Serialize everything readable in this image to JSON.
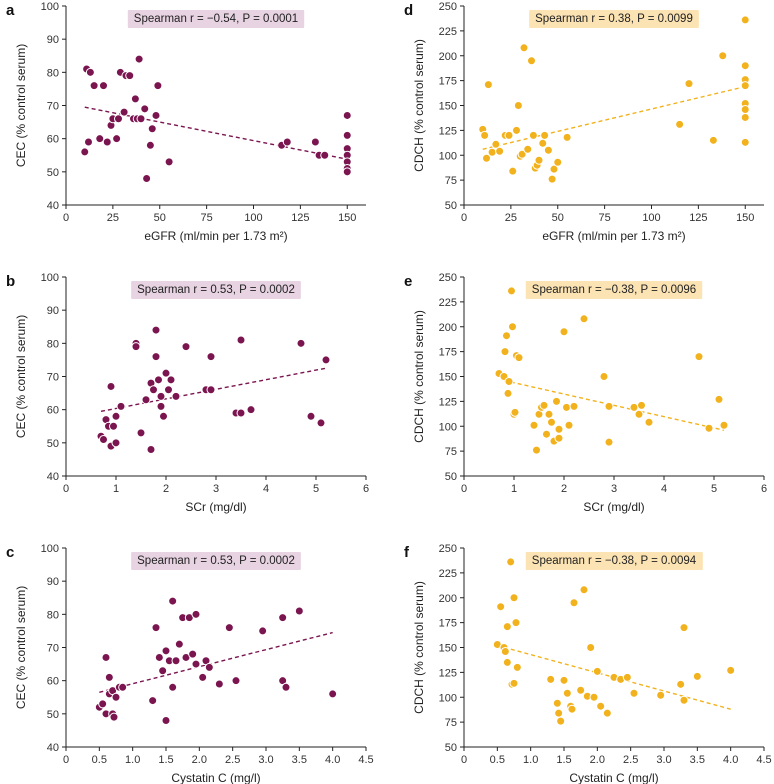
{
  "colors": {
    "purple": "#7b1550",
    "purple_box": "#e8d3e3",
    "orange": "#f2b21d",
    "orange_box": "#fbe3b3"
  },
  "chart_data": [
    {
      "type": "scatter",
      "panel_label": "a",
      "color": "purple",
      "stats_label": "Spearman r = −0.54, P = 0.0001",
      "xlabel": "eGFR (ml/min per 1.73 m²)",
      "ylabel": "CEC (% control serum)",
      "xlim": [
        0,
        160
      ],
      "ylim": [
        40,
        100
      ],
      "xticks": [
        0,
        25,
        50,
        75,
        100,
        125,
        150
      ],
      "yticks": [
        40,
        50,
        60,
        70,
        80,
        90,
        100
      ],
      "trend": [
        [
          10,
          69.5
        ],
        [
          150,
          53.8
        ]
      ],
      "points": [
        [
          10,
          56
        ],
        [
          11,
          81
        ],
        [
          12,
          59
        ],
        [
          13,
          80
        ],
        [
          15,
          76
        ],
        [
          18,
          60
        ],
        [
          20,
          76
        ],
        [
          22,
          59
        ],
        [
          24,
          64
        ],
        [
          25,
          66
        ],
        [
          27,
          60
        ],
        [
          28,
          66
        ],
        [
          29,
          80
        ],
        [
          31,
          68
        ],
        [
          32,
          79
        ],
        [
          34,
          79
        ],
        [
          36,
          66
        ],
        [
          37,
          72
        ],
        [
          38,
          66
        ],
        [
          39,
          84
        ],
        [
          40,
          66
        ],
        [
          42,
          69
        ],
        [
          43,
          48
        ],
        [
          45,
          58
        ],
        [
          46,
          63
        ],
        [
          48,
          67
        ],
        [
          49,
          76
        ],
        [
          55,
          53
        ],
        [
          115,
          58
        ],
        [
          118,
          59
        ],
        [
          133,
          59
        ],
        [
          135,
          55
        ],
        [
          138,
          55
        ],
        [
          150,
          67
        ],
        [
          150,
          61
        ],
        [
          150,
          57
        ],
        [
          150,
          55
        ],
        [
          150,
          53
        ],
        [
          150,
          51
        ],
        [
          150,
          50
        ]
      ]
    },
    {
      "type": "scatter",
      "panel_label": "b",
      "color": "purple",
      "stats_label": "Spearman r = 0.53, P = 0.0002",
      "xlabel": "SCr (mg/dl)",
      "ylabel": "CEC (% control serum)",
      "xlim": [
        0,
        6
      ],
      "ylim": [
        40,
        100
      ],
      "xticks": [
        0,
        1,
        2,
        3,
        4,
        5,
        6
      ],
      "yticks": [
        40,
        50,
        60,
        70,
        80,
        90,
        100
      ],
      "trend": [
        [
          0.7,
          59.5
        ],
        [
          5.2,
          72.5
        ]
      ],
      "points": [
        [
          0.7,
          52
        ],
        [
          0.75,
          51
        ],
        [
          0.8,
          57
        ],
        [
          0.85,
          55
        ],
        [
          0.9,
          67
        ],
        [
          0.9,
          49
        ],
        [
          0.95,
          55
        ],
        [
          1.0,
          58
        ],
        [
          1.0,
          50
        ],
        [
          1.1,
          61
        ],
        [
          1.4,
          80
        ],
        [
          1.4,
          79
        ],
        [
          1.5,
          53
        ],
        [
          1.6,
          63
        ],
        [
          1.7,
          68
        ],
        [
          1.7,
          48
        ],
        [
          1.75,
          66
        ],
        [
          1.8,
          84
        ],
        [
          1.8,
          76
        ],
        [
          1.85,
          69
        ],
        [
          1.9,
          64
        ],
        [
          1.9,
          61
        ],
        [
          1.95,
          58
        ],
        [
          2.0,
          71
        ],
        [
          2.05,
          66
        ],
        [
          2.1,
          69
        ],
        [
          2.2,
          64
        ],
        [
          2.4,
          79
        ],
        [
          2.8,
          66
        ],
        [
          2.9,
          76
        ],
        [
          2.9,
          66
        ],
        [
          3.4,
          59
        ],
        [
          3.5,
          81
        ],
        [
          3.5,
          59
        ],
        [
          3.7,
          60
        ],
        [
          4.7,
          80
        ],
        [
          4.9,
          58
        ],
        [
          5.1,
          56
        ],
        [
          5.2,
          75
        ]
      ]
    },
    {
      "type": "scatter",
      "panel_label": "c",
      "color": "purple",
      "stats_label": "Spearman r = 0.53, P = 0.0002",
      "xlabel": "Cystatin C (mg/l)",
      "ylabel": "CEC (% control serum)",
      "xlim": [
        0,
        4.5
      ],
      "ylim": [
        40,
        100
      ],
      "xticks": [
        0,
        0.5,
        1.0,
        1.5,
        2.0,
        2.5,
        3.0,
        3.5,
        4.0,
        4.5
      ],
      "yticks": [
        40,
        50,
        60,
        70,
        80,
        90,
        100
      ],
      "trend": [
        [
          0.5,
          56.5
        ],
        [
          4.0,
          74.5
        ]
      ],
      "points": [
        [
          0.5,
          52
        ],
        [
          0.55,
          53
        ],
        [
          0.6,
          67
        ],
        [
          0.6,
          50
        ],
        [
          0.65,
          56
        ],
        [
          0.65,
          61
        ],
        [
          0.7,
          57
        ],
        [
          0.7,
          50
        ],
        [
          0.72,
          49
        ],
        [
          0.75,
          55
        ],
        [
          0.8,
          58
        ],
        [
          0.85,
          58
        ],
        [
          1.3,
          54
        ],
        [
          1.35,
          76
        ],
        [
          1.4,
          67
        ],
        [
          1.45,
          63
        ],
        [
          1.5,
          48
        ],
        [
          1.5,
          69
        ],
        [
          1.55,
          66
        ],
        [
          1.6,
          84
        ],
        [
          1.6,
          58
        ],
        [
          1.65,
          66
        ],
        [
          1.7,
          71
        ],
        [
          1.75,
          79
        ],
        [
          1.8,
          67
        ],
        [
          1.85,
          79
        ],
        [
          1.9,
          68
        ],
        [
          1.95,
          80
        ],
        [
          1.95,
          65
        ],
        [
          2.05,
          61
        ],
        [
          2.1,
          66
        ],
        [
          2.15,
          64
        ],
        [
          2.3,
          59
        ],
        [
          2.45,
          76
        ],
        [
          2.55,
          60
        ],
        [
          2.95,
          75
        ],
        [
          3.25,
          79
        ],
        [
          3.25,
          60
        ],
        [
          3.3,
          58
        ],
        [
          3.5,
          81
        ],
        [
          4.0,
          56
        ]
      ]
    },
    {
      "type": "scatter",
      "panel_label": "d",
      "color": "orange",
      "stats_label": "Spearman r = 0.38, P = 0.0099",
      "xlabel": "eGFR (ml/min per 1.73 m²)",
      "ylabel": "CDCH (% control serum)",
      "xlim": [
        0,
        160
      ],
      "ylim": [
        50,
        250
      ],
      "xticks": [
        0,
        25,
        50,
        75,
        100,
        125,
        150
      ],
      "yticks": [
        50,
        75,
        100,
        125,
        150,
        175,
        200,
        225,
        250
      ],
      "trend": [
        [
          10,
          106
        ],
        [
          150,
          169
        ]
      ],
      "points": [
        [
          10,
          126
        ],
        [
          11,
          120
        ],
        [
          12,
          97
        ],
        [
          13,
          171
        ],
        [
          15,
          103
        ],
        [
          17,
          111
        ],
        [
          19,
          104
        ],
        [
          22,
          120
        ],
        [
          24,
          120
        ],
        [
          26,
          84
        ],
        [
          28,
          125
        ],
        [
          29,
          150
        ],
        [
          30,
          99
        ],
        [
          31,
          101
        ],
        [
          32,
          208
        ],
        [
          34,
          106
        ],
        [
          36,
          195
        ],
        [
          37,
          120
        ],
        [
          38,
          87
        ],
        [
          39,
          90
        ],
        [
          40,
          95
        ],
        [
          42,
          112
        ],
        [
          43,
          120
        ],
        [
          45,
          105
        ],
        [
          47,
          76
        ],
        [
          48,
          86
        ],
        [
          50,
          93
        ],
        [
          55,
          118
        ],
        [
          115,
          131
        ],
        [
          120,
          172
        ],
        [
          133,
          115
        ],
        [
          138,
          200
        ],
        [
          150,
          236
        ],
        [
          150,
          190
        ],
        [
          150,
          176
        ],
        [
          150,
          170
        ],
        [
          150,
          152
        ],
        [
          150,
          146
        ],
        [
          150,
          138
        ],
        [
          150,
          113
        ]
      ]
    },
    {
      "type": "scatter",
      "panel_label": "e",
      "color": "orange",
      "stats_label": "Spearman r = −0.38, P = 0.0096",
      "xlabel": "SCr (mg/dl)",
      "ylabel": "CDCH (% control serum)",
      "xlim": [
        0,
        6
      ],
      "ylim": [
        50,
        250
      ],
      "xticks": [
        0,
        1,
        2,
        3,
        4,
        5,
        6
      ],
      "yticks": [
        50,
        75,
        100,
        125,
        150,
        175,
        200,
        225,
        250
      ],
      "trend": [
        [
          0.8,
          146
        ],
        [
          5.2,
          96
        ]
      ],
      "points": [
        [
          0.7,
          153
        ],
        [
          0.8,
          150
        ],
        [
          0.82,
          175
        ],
        [
          0.85,
          191
        ],
        [
          0.88,
          133
        ],
        [
          0.9,
          145
        ],
        [
          0.95,
          236
        ],
        [
          0.97,
          200
        ],
        [
          1.0,
          112
        ],
        [
          1.02,
          114
        ],
        [
          1.05,
          171
        ],
        [
          1.1,
          169
        ],
        [
          1.4,
          101
        ],
        [
          1.45,
          76
        ],
        [
          1.5,
          112
        ],
        [
          1.55,
          119
        ],
        [
          1.6,
          121
        ],
        [
          1.65,
          92
        ],
        [
          1.7,
          112
        ],
        [
          1.75,
          104
        ],
        [
          1.8,
          85
        ],
        [
          1.85,
          125
        ],
        [
          1.9,
          97
        ],
        [
          1.9,
          88
        ],
        [
          2.0,
          195
        ],
        [
          2.05,
          119
        ],
        [
          2.1,
          101
        ],
        [
          2.2,
          120
        ],
        [
          2.4,
          208
        ],
        [
          2.8,
          150
        ],
        [
          2.9,
          120
        ],
        [
          2.9,
          84
        ],
        [
          3.4,
          119
        ],
        [
          3.5,
          112
        ],
        [
          3.55,
          121
        ],
        [
          3.7,
          104
        ],
        [
          4.7,
          170
        ],
        [
          4.9,
          98
        ],
        [
          5.1,
          127
        ],
        [
          5.2,
          101
        ]
      ]
    },
    {
      "type": "scatter",
      "panel_label": "f",
      "color": "orange",
      "stats_label": "Spearman r = −0.38, P = 0.0094",
      "xlabel": "Cystatin C (mg/l)",
      "ylabel": "CDCH (% control serum)",
      "xlim": [
        0,
        4.5
      ],
      "ylim": [
        50,
        250
      ],
      "xticks": [
        0,
        0.5,
        1.0,
        1.5,
        2.0,
        2.5,
        3.0,
        3.5,
        4.0,
        4.5
      ],
      "yticks": [
        50,
        75,
        100,
        125,
        150,
        175,
        200,
        225,
        250
      ],
      "trend": [
        [
          0.5,
          152
        ],
        [
          4.0,
          88
        ]
      ],
      "points": [
        [
          0.5,
          153
        ],
        [
          0.55,
          191
        ],
        [
          0.6,
          150
        ],
        [
          0.62,
          146
        ],
        [
          0.65,
          171
        ],
        [
          0.65,
          135
        ],
        [
          0.7,
          236
        ],
        [
          0.72,
          113
        ],
        [
          0.75,
          200
        ],
        [
          0.75,
          114
        ],
        [
          0.78,
          175
        ],
        [
          0.8,
          130
        ],
        [
          1.3,
          118
        ],
        [
          1.4,
          94
        ],
        [
          1.42,
          84
        ],
        [
          1.45,
          76
        ],
        [
          1.5,
          117
        ],
        [
          1.55,
          104
        ],
        [
          1.6,
          91
        ],
        [
          1.62,
          88
        ],
        [
          1.65,
          195
        ],
        [
          1.75,
          107
        ],
        [
          1.8,
          208
        ],
        [
          1.85,
          101
        ],
        [
          1.9,
          150
        ],
        [
          1.95,
          100
        ],
        [
          2.0,
          126
        ],
        [
          2.05,
          91
        ],
        [
          2.15,
          84
        ],
        [
          2.25,
          120
        ],
        [
          2.35,
          118
        ],
        [
          2.45,
          120
        ],
        [
          2.55,
          104
        ],
        [
          2.95,
          102
        ],
        [
          3.25,
          113
        ],
        [
          3.3,
          170
        ],
        [
          3.3,
          97
        ],
        [
          3.5,
          121
        ],
        [
          4.0,
          127
        ]
      ]
    }
  ]
}
